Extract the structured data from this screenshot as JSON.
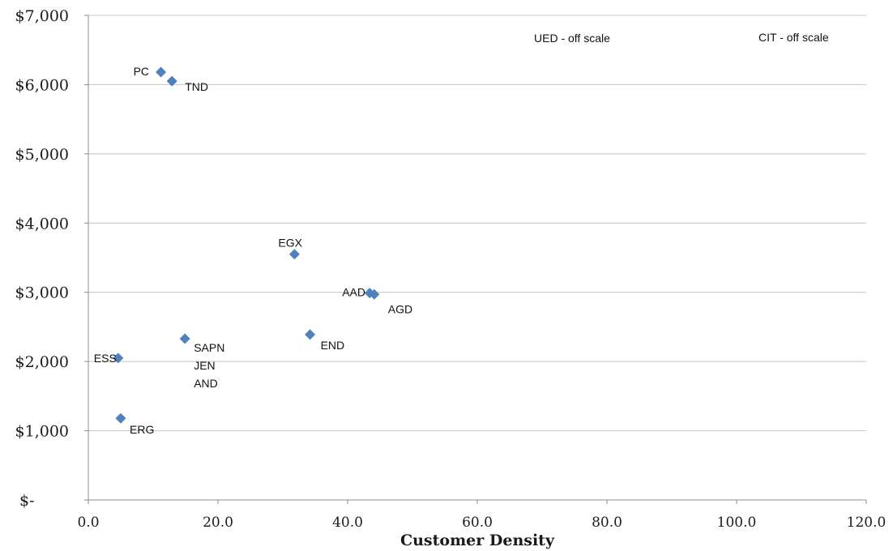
{
  "chart_data": {
    "type": "scatter",
    "title": "",
    "xlabel": "Customer Density",
    "ylabel": "",
    "xlim": [
      0,
      120
    ],
    "ylim": [
      0,
      7000
    ],
    "x_tick_values": [
      0,
      20,
      40,
      60,
      80,
      100,
      120
    ],
    "x_tick_labels": [
      "0.0",
      "20.0",
      "40.0",
      "60.0",
      "80.0",
      "100.0",
      "120.0"
    ],
    "y_tick_values": [
      0,
      1000,
      2000,
      3000,
      4000,
      5000,
      6000,
      7000
    ],
    "y_tick_labels": [
      "$-",
      "$1,000",
      "$2,000",
      "$3,000",
      "$4,000",
      "$5,000",
      "$6,000",
      "$7,000"
    ],
    "grid": "horizontal",
    "marker": "diamond",
    "marker_color": "#4f81bd",
    "points": [
      {
        "label": "PC",
        "x": 11.2,
        "y": 6180
      },
      {
        "label": "TND",
        "x": 12.9,
        "y": 6050
      },
      {
        "label": "EGX",
        "x": 31.8,
        "y": 3550
      },
      {
        "label": "AAD",
        "x": 43.4,
        "y": 2990
      },
      {
        "label": "AGD",
        "x": 44.1,
        "y": 2970
      },
      {
        "label": "END",
        "x": 34.2,
        "y": 2390
      },
      {
        "label": "SAPN\nJEN\nAND",
        "x": 14.9,
        "y": 2330
      },
      {
        "label": "ESS",
        "x": 4.6,
        "y": 2050
      },
      {
        "label": "ERG",
        "x": 5.0,
        "y": 1180
      }
    ],
    "annotations": [
      "UED - off scale",
      "CIT - off scale"
    ]
  }
}
